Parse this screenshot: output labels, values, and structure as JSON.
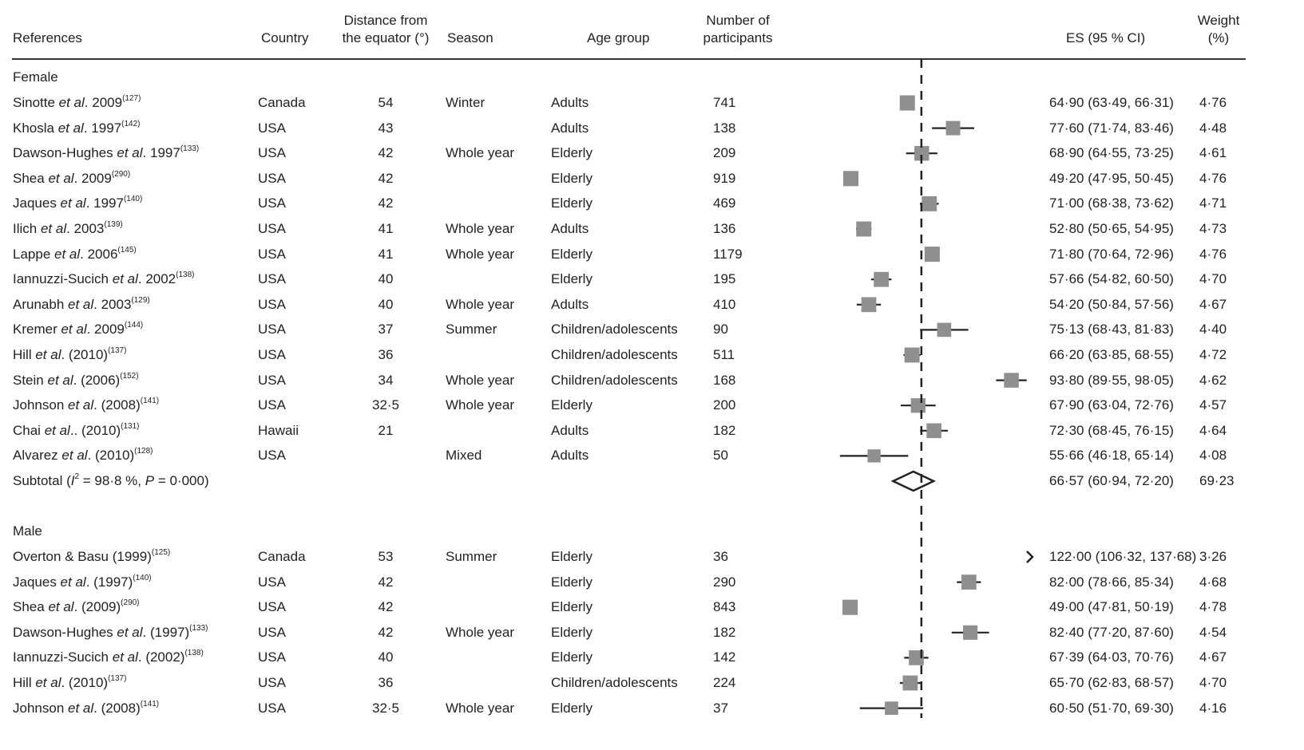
{
  "header": {
    "references": "References",
    "country": "Country",
    "distance_l1": "Distance from",
    "distance_l2": "the equator (°)",
    "season": "Season",
    "age": "Age group",
    "n_l1": "Number of",
    "n_l2": "participants",
    "es": "ES (95 % CI)",
    "weight_l1": "Weight",
    "weight_l2": "(%)"
  },
  "chart_data": {
    "type": "forest",
    "reference_line": 68.8,
    "xlim": [
      38,
      99
    ],
    "groups": [
      {
        "label": "Female",
        "rows": [
          {
            "pre": "Sinotte ",
            "it": "et al",
            "post": ". 2009",
            "ref": "(127)",
            "country": "Canada",
            "distance": "54",
            "season": "Winter",
            "age": "Adults",
            "n": "741",
            "es": 64.9,
            "lo": 63.49,
            "hi": 66.31,
            "es_text": "64·90 (63·49, 66·31)",
            "weight": "4·76"
          },
          {
            "pre": "Khosla ",
            "it": "et al",
            "post": ". 1997",
            "ref": "(142)",
            "country": "USA",
            "distance": "43",
            "season": "",
            "age": "Adults",
            "n": "138",
            "es": 77.6,
            "lo": 71.74,
            "hi": 83.46,
            "es_text": "77·60 (71·74, 83·46)",
            "weight": "4·48"
          },
          {
            "pre": "Dawson-Hughes ",
            "it": "et al",
            "post": ". 1997",
            "ref": "(133)",
            "country": "USA",
            "distance": "42",
            "season": "Whole year",
            "age": "Elderly",
            "n": "209",
            "es": 68.9,
            "lo": 64.55,
            "hi": 73.25,
            "es_text": "68·90 (64·55, 73·25)",
            "weight": "4·61"
          },
          {
            "pre": "Shea ",
            "it": "et al",
            "post": ". 2009",
            "ref": "(290)",
            "country": "USA",
            "distance": "42",
            "season": "",
            "age": "Elderly",
            "n": "919",
            "es": 49.2,
            "lo": 47.95,
            "hi": 50.45,
            "es_text": "49·20 (47·95, 50·45)",
            "weight": "4·76"
          },
          {
            "pre": "Jaques ",
            "it": "et al",
            "post": ". 1997",
            "ref": "(140)",
            "country": "USA",
            "distance": "42",
            "season": "",
            "age": "Elderly",
            "n": "469",
            "es": 71.0,
            "lo": 68.38,
            "hi": 73.62,
            "es_text": "71·00 (68·38, 73·62)",
            "weight": "4·71"
          },
          {
            "pre": "Ilich ",
            "it": "et al",
            "post": ". 2003",
            "ref": "(139)",
            "country": "USA",
            "distance": "41",
            "season": "Whole year",
            "age": "Adults",
            "n": "136",
            "es": 52.8,
            "lo": 50.65,
            "hi": 54.95,
            "es_text": "52·80 (50·65, 54·95)",
            "weight": "4·73"
          },
          {
            "pre": "Lappe ",
            "it": "et al",
            "post": ". 2006",
            "ref": "(145)",
            "country": "USA",
            "distance": "41",
            "season": "Whole year",
            "age": "Elderly",
            "n": "1179",
            "es": 71.8,
            "lo": 70.64,
            "hi": 72.96,
            "es_text": "71·80 (70·64, 72·96)",
            "weight": "4·76"
          },
          {
            "pre": "Iannuzzi-Sucich ",
            "it": "et al",
            "post": ". 2002",
            "ref": "(138)",
            "country": "USA",
            "distance": "40",
            "season": "",
            "age": "Elderly",
            "n": "195",
            "es": 57.66,
            "lo": 54.82,
            "hi": 60.5,
            "es_text": "57·66 (54·82, 60·50)",
            "weight": "4·70"
          },
          {
            "pre": "Arunabh ",
            "it": "et al",
            "post": ". 2003",
            "ref": "(129)",
            "country": "USA",
            "distance": "40",
            "season": "Whole year",
            "age": "Adults",
            "n": "410",
            "es": 54.2,
            "lo": 50.84,
            "hi": 57.56,
            "es_text": "54·20 (50·84, 57·56)",
            "weight": "4·67"
          },
          {
            "pre": "Kremer ",
            "it": "et al",
            "post": ". 2009",
            "ref": "(144)",
            "country": "USA",
            "distance": "37",
            "season": "Summer",
            "age": "Children/adolescents",
            "n": "90",
            "es": 75.13,
            "lo": 68.43,
            "hi": 81.83,
            "es_text": "75·13 (68·43, 81·83)",
            "weight": "4·40"
          },
          {
            "pre": "Hill ",
            "it": "et al",
            "post": ". (2010)",
            "ref": "(137)",
            "country": "USA",
            "distance": "36",
            "season": "",
            "age": "Children/adolescents",
            "n": "511",
            "es": 66.2,
            "lo": 63.85,
            "hi": 68.55,
            "es_text": "66·20 (63·85, 68·55)",
            "weight": "4·72"
          },
          {
            "pre": "Stein ",
            "it": "et al",
            "post": ". (2006)",
            "ref": "(152)",
            "country": "USA",
            "distance": "34",
            "season": "Whole year",
            "age": "Children/adolescents",
            "n": "168",
            "es": 93.8,
            "lo": 89.55,
            "hi": 98.05,
            "es_text": "93·80 (89·55, 98·05)",
            "weight": "4·62"
          },
          {
            "pre": "Johnson ",
            "it": "et al",
            "post": ". (2008)",
            "ref": "(141)",
            "country": "USA",
            "distance": "32·5",
            "season": "Whole year",
            "age": "Elderly",
            "n": "200",
            "es": 67.9,
            "lo": 63.04,
            "hi": 72.76,
            "es_text": "67·90 (63·04, 72·76)",
            "weight": "4·57"
          },
          {
            "pre": "Chai ",
            "it": "et al",
            "post": ".. (2010)",
            "ref": "(131)",
            "country": "Hawaii",
            "distance": "21",
            "season": "",
            "age": "Adults",
            "n": "182",
            "es": 72.3,
            "lo": 68.45,
            "hi": 76.15,
            "es_text": "72·30 (68·45, 76·15)",
            "weight": "4·64"
          },
          {
            "pre": "Alvarez ",
            "it": "et al",
            "post": ". (2010)",
            "ref": "(128)",
            "country": "USA",
            "distance": "",
            "season": "Mixed",
            "age": "Adults",
            "n": "50",
            "es": 55.66,
            "lo": 46.18,
            "hi": 65.14,
            "es_text": "55·66 (46·18, 65·14)",
            "weight": "4·08"
          }
        ],
        "subtotal": {
          "label_pre": "Subtotal (",
          "label_i": "I",
          "label_sup": "2",
          "label_mid": " = 98·8 %, ",
          "label_p": "P",
          "label_post": " = 0·000)",
          "es": 66.57,
          "lo": 60.94,
          "hi": 72.2,
          "es_text": "66·57 (60·94, 72·20)",
          "weight": "69·23"
        }
      },
      {
        "label": "Male",
        "rows": [
          {
            "pre": "Overton & Basu (1999)",
            "it": "",
            "post": "",
            "ref": "(125)",
            "country": "Canada",
            "distance": "53",
            "season": "Summer",
            "age": "Elderly",
            "n": "36",
            "es": 122.0,
            "lo": 106.32,
            "hi": 137.68,
            "es_text": "122·00 (106·32, 137·68)",
            "weight": "3·26"
          },
          {
            "pre": "Jaques ",
            "it": "et al",
            "post": ". (1997)",
            "ref": "(140)",
            "country": "USA",
            "distance": "42",
            "season": "",
            "age": "Elderly",
            "n": "290",
            "es": 82.0,
            "lo": 78.66,
            "hi": 85.34,
            "es_text": "82·00 (78·66, 85·34)",
            "weight": "4·68"
          },
          {
            "pre": "Shea ",
            "it": "et al",
            "post": ". (2009)",
            "ref": "(290)",
            "country": "USA",
            "distance": "42",
            "season": "",
            "age": "Elderly",
            "n": "843",
            "es": 49.0,
            "lo": 47.81,
            "hi": 50.19,
            "es_text": "49·00 (47·81, 50·19)",
            "weight": "4·78"
          },
          {
            "pre": "Dawson-Hughes ",
            "it": "et al",
            "post": ". (1997)",
            "ref": "(133)",
            "country": "USA",
            "distance": "42",
            "season": "Whole year",
            "age": "Elderly",
            "n": "182",
            "es": 82.4,
            "lo": 77.2,
            "hi": 87.6,
            "es_text": "82·40 (77·20, 87·60)",
            "weight": "4·54"
          },
          {
            "pre": "Iannuzzi-Sucich ",
            "it": "et al",
            "post": ". (2002)",
            "ref": "(138)",
            "country": "USA",
            "distance": "40",
            "season": "",
            "age": "Elderly",
            "n": "142",
            "es": 67.39,
            "lo": 64.03,
            "hi": 70.76,
            "es_text": "67·39 (64·03, 70·76)",
            "weight": "4·67"
          },
          {
            "pre": "Hill ",
            "it": "et al",
            "post": ". (2010)",
            "ref": "(137)",
            "country": "USA",
            "distance": "36",
            "season": "",
            "age": "Children/adolescents",
            "n": "224",
            "es": 65.7,
            "lo": 62.83,
            "hi": 68.57,
            "es_text": "65·70 (62·83, 68·57)",
            "weight": "4·70"
          },
          {
            "pre": "Johnson ",
            "it": "et al",
            "post": ". (2008)",
            "ref": "(141)",
            "country": "USA",
            "distance": "32·5",
            "season": "Whole year",
            "age": "Elderly",
            "n": "37",
            "es": 60.5,
            "lo": 51.7,
            "hi": 69.3,
            "es_text": "60·50 (51·70, 69·30)",
            "weight": "4·16"
          }
        ]
      }
    ],
    "colors": {
      "marker": "#8f8f8f",
      "line": "#222222"
    }
  }
}
